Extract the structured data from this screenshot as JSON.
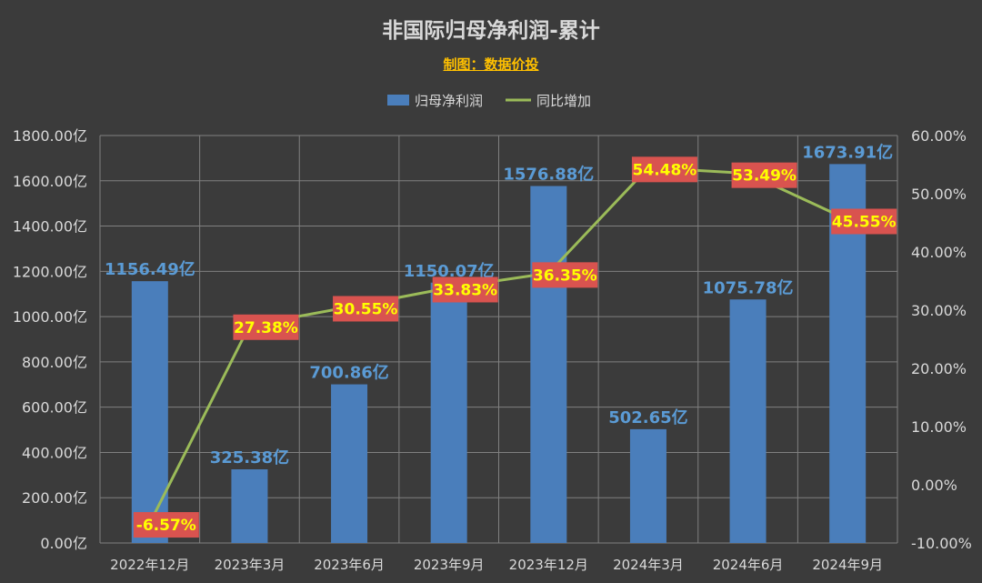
{
  "title": "非国际归母净利润-累计",
  "subtitle": "制图：数据价投",
  "legend": {
    "bar_label": "归母净利润",
    "line_label": "同比增加",
    "position": "top-center"
  },
  "colors": {
    "background": "#3b3b3b",
    "bar": "#4a7ebb",
    "line": "#9bbb59",
    "bar_label": "#5b9bd5",
    "line_label_bg": "#d9534f",
    "line_label_text": "#ffff00",
    "axis_text": "#d9d9d9",
    "grid": "#808080"
  },
  "chart_data": {
    "type": "bar+line",
    "categories": [
      "2022年12月",
      "2023年3月",
      "2023年6月",
      "2023年9月",
      "2023年12月",
      "2024年3月",
      "2024年6月",
      "2024年9月"
    ],
    "series": [
      {
        "name": "归母净利润",
        "type": "bar",
        "axis": "left",
        "values": [
          1156.49,
          325.38,
          700.86,
          1150.07,
          1576.88,
          502.65,
          1075.78,
          1673.91
        ],
        "labels": [
          "1156.49亿",
          "325.38亿",
          "700.86亿",
          "1150.07亿",
          "1576.88亿",
          "502.65亿",
          "1075.78亿",
          "1673.91亿"
        ]
      },
      {
        "name": "同比增加",
        "type": "line",
        "axis": "right",
        "values": [
          -6.57,
          27.38,
          30.55,
          33.83,
          36.35,
          54.48,
          53.49,
          45.55
        ],
        "labels": [
          "-6.57%",
          "27.38%",
          "30.55%",
          "33.83%",
          "36.35%",
          "54.48%",
          "53.49%",
          "45.55%"
        ]
      }
    ],
    "y_left": {
      "min": 0,
      "max": 1800,
      "ticks": [
        "0.00亿",
        "200.00亿",
        "400.00亿",
        "600.00亿",
        "800.00亿",
        "1000.00亿",
        "1200.00亿",
        "1400.00亿",
        "1600.00亿",
        "1800.00亿"
      ]
    },
    "y_right": {
      "min": -10,
      "max": 60,
      "ticks": [
        "-10.00%",
        "0.00%",
        "10.00%",
        "20.00%",
        "30.00%",
        "40.00%",
        "50.00%",
        "60.00%"
      ]
    },
    "grid": true
  }
}
